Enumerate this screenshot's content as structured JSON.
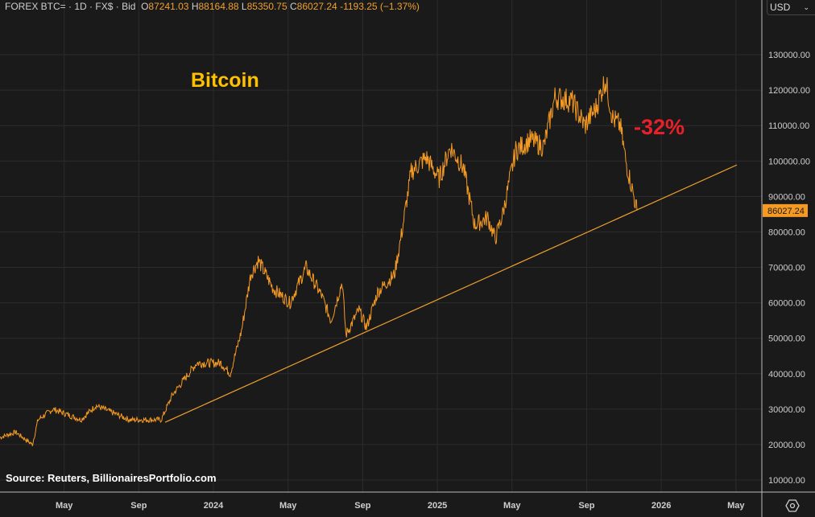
{
  "header": {
    "instrument": "FOREX BTC=",
    "interval": "1D",
    "source": "FX$",
    "side": "Bid",
    "open_label": "O",
    "open": "87241.03",
    "high_label": "H",
    "high": "88164.88",
    "low_label": "L",
    "low": "85350.75",
    "close_label": "C",
    "close": "86027.24",
    "change": "-1193.25 (−1.37%)"
  },
  "currency_select": {
    "value": "USD"
  },
  "annotations": {
    "title": "Bitcoin",
    "drawdown": "-32%",
    "source": "Source: Reuters, BillionairesPortfolio.com"
  },
  "colors": {
    "line": "#f59a23",
    "trend": "#f0a030",
    "background": "#1a1a1a",
    "title": "#ffc000",
    "drawdown": "#e8202a"
  },
  "chart_data": {
    "type": "line",
    "title": "Bitcoin",
    "x_unit": "months since Jan 2023",
    "xlim": [
      0.56,
      41.3
    ],
    "ylim": [
      5000,
      138000
    ],
    "grid": true,
    "y_ticks": [
      "10000.00",
      "20000.00",
      "30000.00",
      "40000.00",
      "50000.00",
      "60000.00",
      "70000.00",
      "80000.00",
      "90000.00",
      "100000.00",
      "110000.00",
      "120000.00",
      "130000.00"
    ],
    "y_tick_values": [
      10000,
      20000,
      30000,
      40000,
      50000,
      60000,
      70000,
      80000,
      90000,
      100000,
      110000,
      120000,
      130000
    ],
    "x_ticks": [
      {
        "label": "May",
        "m": 4
      },
      {
        "label": "Sep",
        "m": 8
      },
      {
        "label": "2024",
        "m": 12
      },
      {
        "label": "May",
        "m": 16
      },
      {
        "label": "Sep",
        "m": 20
      },
      {
        "label": "2025",
        "m": 24
      },
      {
        "label": "May",
        "m": 28
      },
      {
        "label": "Sep",
        "m": 32
      },
      {
        "label": "2026",
        "m": 36
      },
      {
        "label": "May",
        "m": 40
      }
    ],
    "last_price": {
      "label": "86027.24",
      "value": 86027.24
    },
    "series": [
      {
        "name": "BTC",
        "points": [
          [
            0.56,
            22000
          ],
          [
            1.4,
            23500
          ],
          [
            2.3,
            20000
          ],
          [
            2.6,
            27000
          ],
          [
            3.4,
            30000
          ],
          [
            4.9,
            27000
          ],
          [
            5.7,
            31000
          ],
          [
            7.5,
            27000
          ],
          [
            9.2,
            27000
          ],
          [
            9.8,
            34000
          ],
          [
            11.1,
            43000
          ],
          [
            12.4,
            43000
          ],
          [
            12.9,
            40000
          ],
          [
            13.5,
            52000
          ],
          [
            14,
            68000
          ],
          [
            14.4,
            72000
          ],
          [
            15.2,
            64000
          ],
          [
            16.1,
            60000
          ],
          [
            16.96,
            70000
          ],
          [
            17.8,
            62000
          ],
          [
            18.3,
            55000
          ],
          [
            18.9,
            66000
          ],
          [
            19.1,
            51000
          ],
          [
            19.8,
            58000
          ],
          [
            20.2,
            53000
          ],
          [
            20.8,
            63000
          ],
          [
            21.7,
            68000
          ],
          [
            22.1,
            80000
          ],
          [
            22.6,
            97000
          ],
          [
            23.4,
            101000
          ],
          [
            24.1,
            95000
          ],
          [
            24.7,
            104000
          ],
          [
            25.4,
            98000
          ],
          [
            26,
            82000
          ],
          [
            26.7,
            84000
          ],
          [
            27.1,
            78000
          ],
          [
            27.5,
            85000
          ],
          [
            28.2,
            103000
          ],
          [
            29,
            106000
          ],
          [
            29.7,
            104000
          ],
          [
            30.3,
            118000
          ],
          [
            31.2,
            117000
          ],
          [
            31.9,
            110000
          ],
          [
            32.5,
            115000
          ],
          [
            33,
            123000
          ],
          [
            33.4,
            112000
          ],
          [
            33.8,
            110000
          ],
          [
            34.1,
            100000
          ],
          [
            34.7,
            86027
          ]
        ]
      }
    ],
    "trendline": [
      [
        9.41,
        26300
      ],
      [
        40.05,
        98900
      ]
    ]
  }
}
